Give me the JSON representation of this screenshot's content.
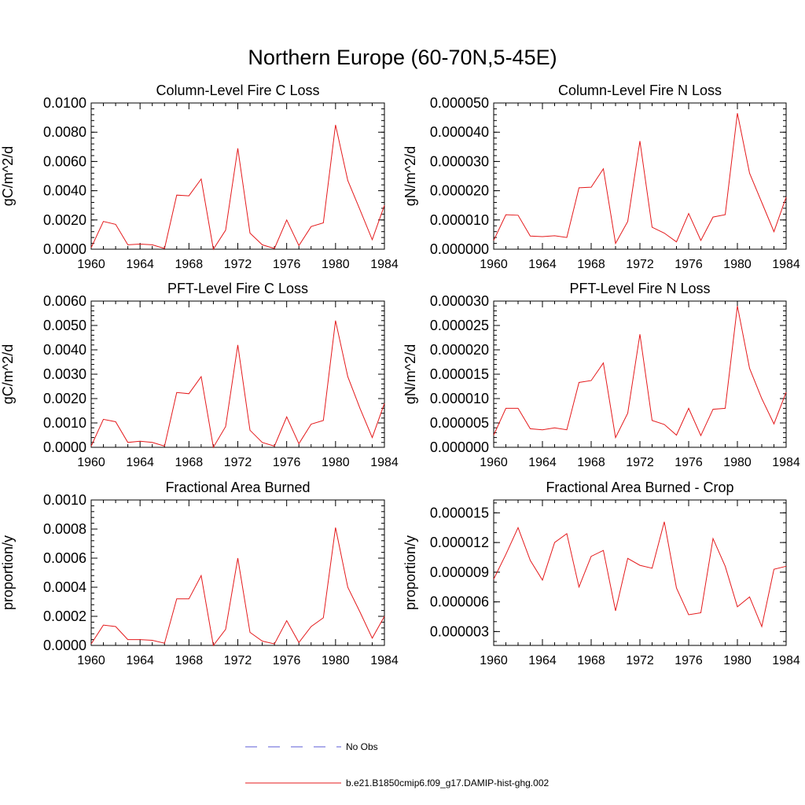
{
  "title": "Northern Europe (60-70N,5-45E)",
  "legend": {
    "entries": [
      {
        "label": "No Obs",
        "color": "#5b5bd6",
        "style": "dashed"
      },
      {
        "label": "b.e21.B1850cmip6.f09_g17.DAMIP-hist-ghg.002",
        "color": "#e41a1c",
        "style": "solid"
      }
    ]
  },
  "chart_data": [
    {
      "type": "line",
      "title": "Column-Level Fire C Loss",
      "xlabel": "",
      "ylabel": "gC/m^2/d",
      "xlim": [
        1960,
        1984
      ],
      "ylim": [
        0,
        0.01
      ],
      "xticks": [
        "1960",
        "1964",
        "1968",
        "1972",
        "1976",
        "1980",
        "1984"
      ],
      "yticks": [
        "0.0000",
        "0.0020",
        "0.0040",
        "0.0060",
        "0.0080",
        "0.0100"
      ],
      "grid": false,
      "series": [
        {
          "color": "#e41a1c",
          "x": [
            1960,
            1961,
            1962,
            1963,
            1964,
            1965,
            1966,
            1967,
            1968,
            1969,
            1970,
            1971,
            1972,
            1973,
            1974,
            1975,
            1976,
            1977,
            1978,
            1979,
            1980,
            1981,
            1982,
            1983,
            1984
          ],
          "values": [
            0.0001,
            0.0019,
            0.0017,
            0.0003,
            0.00035,
            0.0003,
            5e-05,
            0.0037,
            0.00365,
            0.0048,
            0.0,
            0.0013,
            0.0069,
            0.0011,
            0.0003,
            5e-05,
            0.002,
            0.00025,
            0.00155,
            0.0018,
            0.0085,
            0.0047,
            0.0027,
            0.00065,
            0.003
          ]
        }
      ]
    },
    {
      "type": "line",
      "title": "Column-Level Fire N Loss",
      "xlabel": "",
      "ylabel": "gN/m^2/d",
      "xlim": [
        1960,
        1984
      ],
      "ylim": [
        0,
        5e-05
      ],
      "xticks": [
        "1960",
        "1964",
        "1968",
        "1972",
        "1976",
        "1980",
        "1984"
      ],
      "yticks": [
        "0.000000",
        "0.000010",
        "0.000020",
        "0.000030",
        "0.000040",
        "0.000050"
      ],
      "grid": false,
      "series": [
        {
          "color": "#e41a1c",
          "x": [
            1960,
            1961,
            1962,
            1963,
            1964,
            1965,
            1966,
            1967,
            1968,
            1969,
            1970,
            1971,
            1972,
            1973,
            1974,
            1975,
            1976,
            1977,
            1978,
            1979,
            1980,
            1981,
            1982,
            1983,
            1984
          ],
          "values": [
            3e-06,
            1.18e-05,
            1.16e-05,
            4.5e-06,
            4.3e-06,
            4.6e-06,
            4e-06,
            2.1e-05,
            2.12e-05,
            2.75e-05,
            2e-06,
            9.5e-06,
            3.7e-05,
            7.5e-06,
            5.5e-06,
            2.5e-06,
            1.22e-05,
            3e-06,
            1.1e-05,
            1.18e-05,
            4.65e-05,
            2.6e-05,
            1.6e-05,
            6e-06,
            1.78e-05
          ]
        }
      ]
    },
    {
      "type": "line",
      "title": "PFT-Level Fire C Loss",
      "xlabel": "",
      "ylabel": "gC/m^2/d",
      "xlim": [
        1960,
        1984
      ],
      "ylim": [
        0,
        0.006
      ],
      "xticks": [
        "1960",
        "1964",
        "1968",
        "1972",
        "1976",
        "1980",
        "1984"
      ],
      "yticks": [
        "0.0000",
        "0.0010",
        "0.0020",
        "0.0030",
        "0.0040",
        "0.0050",
        "0.0060"
      ],
      "grid": false,
      "series": [
        {
          "color": "#e41a1c",
          "x": [
            1960,
            1961,
            1962,
            1963,
            1964,
            1965,
            1966,
            1967,
            1968,
            1969,
            1970,
            1971,
            1972,
            1973,
            1974,
            1975,
            1976,
            1977,
            1978,
            1979,
            1980,
            1981,
            1982,
            1983,
            1984
          ],
          "values": [
            5e-05,
            0.00115,
            0.00105,
            0.0002,
            0.00025,
            0.0002,
            5e-05,
            0.00225,
            0.0022,
            0.0029,
            0.0,
            0.00085,
            0.0042,
            0.0007,
            0.0002,
            5e-05,
            0.00125,
            0.00015,
            0.00095,
            0.0011,
            0.0052,
            0.0029,
            0.0016,
            0.0004,
            0.0018
          ]
        }
      ]
    },
    {
      "type": "line",
      "title": "PFT-Level Fire N Loss",
      "xlabel": "",
      "ylabel": "gN/m^2/d",
      "xlim": [
        1960,
        1984
      ],
      "ylim": [
        0,
        3e-05
      ],
      "xticks": [
        "1960",
        "1964",
        "1968",
        "1972",
        "1976",
        "1980",
        "1984"
      ],
      "yticks": [
        "0.000000",
        "0.000005",
        "0.000010",
        "0.000015",
        "0.000020",
        "0.000025",
        "0.000030"
      ],
      "grid": false,
      "series": [
        {
          "color": "#e41a1c",
          "x": [
            1960,
            1961,
            1962,
            1963,
            1964,
            1965,
            1966,
            1967,
            1968,
            1969,
            1970,
            1971,
            1972,
            1973,
            1974,
            1975,
            1976,
            1977,
            1978,
            1979,
            1980,
            1981,
            1982,
            1983,
            1984
          ],
          "values": [
            2.5e-06,
            8e-06,
            8e-06,
            3.8e-06,
            3.6e-06,
            4e-06,
            3.6e-06,
            1.33e-05,
            1.37e-05,
            1.73e-05,
            2e-06,
            7e-06,
            2.32e-05,
            5.5e-06,
            4.7e-06,
            2.5e-06,
            8e-06,
            2.4e-06,
            7.8e-06,
            8e-06,
            2.9e-05,
            1.62e-05,
            1e-05,
            4.8e-06,
            1.13e-05
          ]
        }
      ]
    },
    {
      "type": "line",
      "title": "Fractional Area Burned",
      "xlabel": "",
      "ylabel": "proportion/y",
      "xlim": [
        1960,
        1984
      ],
      "ylim": [
        0,
        0.001
      ],
      "xticks": [
        "1960",
        "1964",
        "1968",
        "1972",
        "1976",
        "1980",
        "1984"
      ],
      "yticks": [
        "0.0000",
        "0.0002",
        "0.0004",
        "0.0006",
        "0.0008",
        "0.0010"
      ],
      "grid": false,
      "series": [
        {
          "color": "#e41a1c",
          "x": [
            1960,
            1961,
            1962,
            1963,
            1964,
            1965,
            1966,
            1967,
            1968,
            1969,
            1970,
            1971,
            1972,
            1973,
            1974,
            1975,
            1976,
            1977,
            1978,
            1979,
            1980,
            1981,
            1982,
            1983,
            1984
          ],
          "values": [
            1e-05,
            0.00014,
            0.00013,
            4e-05,
            4e-05,
            3.5e-05,
            1.5e-05,
            0.00032,
            0.00032,
            0.00048,
            0.0,
            0.00011,
            0.0006,
            9e-05,
            3e-05,
            1e-05,
            0.00017,
            2e-05,
            0.00013,
            0.00019,
            0.00081,
            0.0004,
            0.00023,
            5e-05,
            0.0002
          ]
        }
      ]
    },
    {
      "type": "line",
      "title": "Fractional Area Burned - Crop",
      "xlabel": "",
      "ylabel": "proportion/y",
      "xlim": [
        1960,
        1984
      ],
      "ylim": [
        1.6e-06,
        1.63e-05
      ],
      "xticks": [
        "1960",
        "1964",
        "1968",
        "1972",
        "1976",
        "1980",
        "1984"
      ],
      "yticks": [
        "0.000003",
        "0.000006",
        "0.000009",
        "0.000012",
        "0.000015"
      ],
      "ytick_values": [
        3e-06,
        6e-06,
        9e-06,
        1.2e-05,
        1.5e-05
      ],
      "grid": false,
      "series": [
        {
          "color": "#e41a1c",
          "x": [
            1960,
            1961,
            1962,
            1963,
            1964,
            1965,
            1966,
            1967,
            1968,
            1969,
            1970,
            1971,
            1972,
            1973,
            1974,
            1975,
            1976,
            1977,
            1978,
            1979,
            1980,
            1981,
            1982,
            1983,
            1984
          ],
          "values": [
            8.3e-06,
            1.08e-05,
            1.35e-05,
            1.02e-05,
            8.2e-06,
            1.2e-05,
            1.29e-05,
            7.5e-06,
            1.06e-05,
            1.12e-05,
            5.1e-06,
            1.04e-05,
            9.7e-06,
            9.4e-06,
            1.41e-05,
            7.4e-06,
            4.7e-06,
            4.9e-06,
            1.24e-05,
            9.6e-06,
            5.5e-06,
            6.5e-06,
            3.5e-06,
            9.3e-06,
            9.6e-06
          ]
        }
      ]
    }
  ]
}
